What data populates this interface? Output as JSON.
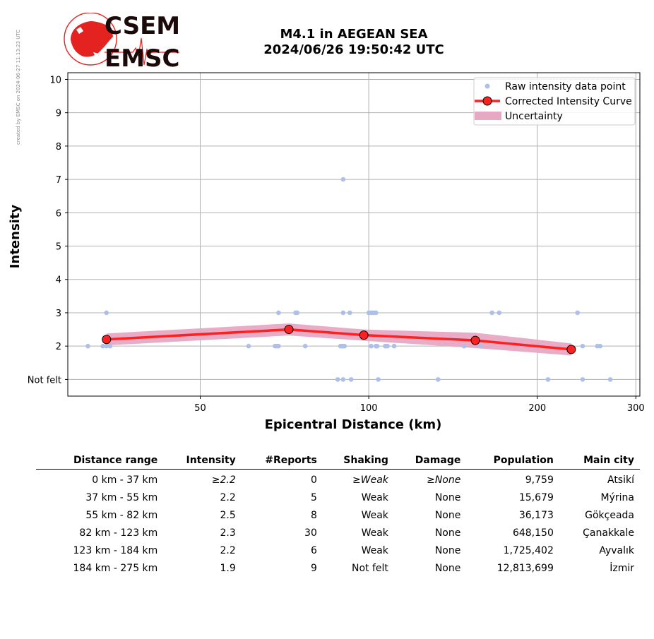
{
  "side_note": "created by EMSC on 2024-06-27 11:13:23 UTC",
  "logo": {
    "top_text": "CSEM",
    "bottom_text": "EMSC"
  },
  "title": {
    "line1": "M4.1 in AEGEAN SEA",
    "line2": "2024/06/26 19:50:42 UTC"
  },
  "colors": {
    "raw_points": "#aebfe8",
    "curve": "#ff2020",
    "uncertainty": "#e8a8c4",
    "marker_edge": "#000000",
    "logo_red": "#e42320",
    "logo_text": "#1b0a0a"
  },
  "chart_data": {
    "type": "scatter",
    "xlabel": "Epicentral Distance (km)",
    "ylabel": "Intensity",
    "x_scale": "log",
    "xlim": [
      29,
      305
    ],
    "ylim": [
      0.5,
      10.2
    ],
    "x_ticks": [
      50,
      100,
      200,
      300
    ],
    "y_ticks": [
      {
        "value": 1,
        "label": "Not felt"
      },
      {
        "value": 2,
        "label": "2"
      },
      {
        "value": 3,
        "label": "3"
      },
      {
        "value": 4,
        "label": "4"
      },
      {
        "value": 5,
        "label": "5"
      },
      {
        "value": 6,
        "label": "6"
      },
      {
        "value": 7,
        "label": "7"
      },
      {
        "value": 8,
        "label": "8"
      },
      {
        "value": 9,
        "label": "9"
      },
      {
        "value": 10,
        "label": "10"
      }
    ],
    "grid": true,
    "legend_position": "top-right",
    "legend": [
      "Raw intensity data point",
      "Corrected Intensity Curve",
      "Uncertainty"
    ],
    "raw_points": [
      [
        31.5,
        2
      ],
      [
        33.5,
        2
      ],
      [
        34,
        2
      ],
      [
        34.5,
        2
      ],
      [
        34,
        3
      ],
      [
        61,
        2
      ],
      [
        68,
        2
      ],
      [
        68.5,
        2
      ],
      [
        69,
        2
      ],
      [
        69,
        3
      ],
      [
        74,
        3
      ],
      [
        74.5,
        3
      ],
      [
        77,
        2
      ],
      [
        89,
        2
      ],
      [
        89.5,
        2
      ],
      [
        90,
        2
      ],
      [
        90.5,
        2
      ],
      [
        90,
        3
      ],
      [
        90,
        7
      ],
      [
        92.5,
        3
      ],
      [
        88,
        1
      ],
      [
        90,
        1
      ],
      [
        93,
        1
      ],
      [
        100,
        3
      ],
      [
        101,
        3
      ],
      [
        102,
        3
      ],
      [
        103,
        3
      ],
      [
        101,
        2
      ],
      [
        103,
        2
      ],
      [
        103.5,
        2
      ],
      [
        104,
        1
      ],
      [
        107,
        2
      ],
      [
        108,
        2
      ],
      [
        111,
        2
      ],
      [
        133,
        1
      ],
      [
        148,
        2
      ],
      [
        158,
        2
      ],
      [
        166,
        3
      ],
      [
        171,
        3
      ],
      [
        209,
        1
      ],
      [
        236,
        3
      ],
      [
        241,
        2
      ],
      [
        241,
        1
      ],
      [
        256,
        2
      ],
      [
        259,
        2
      ],
      [
        270,
        1
      ]
    ],
    "curve": {
      "x": [
        34,
        72,
        98,
        155,
        230
      ],
      "y": [
        2.2,
        2.5,
        2.33,
        2.17,
        1.9
      ]
    },
    "uncertainty": {
      "x": [
        34,
        72,
        98,
        155,
        230
      ],
      "upper": [
        2.38,
        2.68,
        2.5,
        2.4,
        2.08
      ],
      "lower": [
        2.02,
        2.32,
        2.16,
        1.94,
        1.72
      ]
    }
  },
  "table": {
    "headers": [
      "Distance range",
      "Intensity",
      "#Reports",
      "Shaking",
      "Damage",
      "Population",
      "Main city"
    ],
    "rows": [
      [
        "0 km -   37 km",
        "≥2.2",
        "0",
        "≥Weak",
        "≥None",
        "9,759",
        "Atsikí"
      ],
      [
        "37 km -   55 km",
        "2.2",
        "5",
        "Weak",
        "None",
        "15,679",
        "Mýrina"
      ],
      [
        "55 km -   82 km",
        "2.5",
        "8",
        "Weak",
        "None",
        "36,173",
        "Gökçeada"
      ],
      [
        "82 km -  123 km",
        "2.3",
        "30",
        "Weak",
        "None",
        "648,150",
        "Çanakkale"
      ],
      [
        "123 km -  184 km",
        "2.2",
        "6",
        "Weak",
        "None",
        "1,725,402",
        "Ayvalık"
      ],
      [
        "184 km -  275 km",
        "1.9",
        "9",
        "Not felt",
        "None",
        "12,813,699",
        "İzmir"
      ]
    ]
  }
}
